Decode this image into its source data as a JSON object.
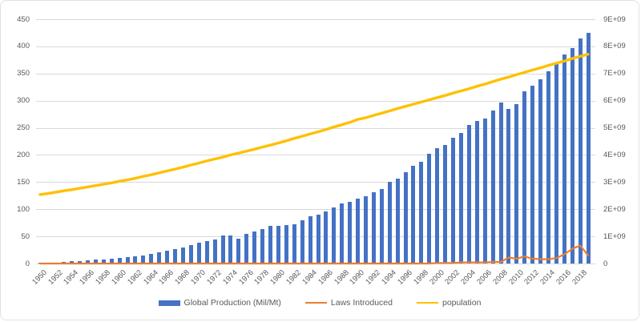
{
  "legend": {
    "items": [
      {
        "label": "Global Production (Mil/Mt)",
        "swatch": "bar",
        "color": "#4472C4"
      },
      {
        "label": "Laws Introduced",
        "swatch": "line",
        "color": "#ED7D31"
      },
      {
        "label": "population",
        "swatch": "line",
        "color": "#FFC000"
      }
    ]
  },
  "colors": {
    "bar_blue": "#4472C4",
    "line_orange": "#ED7D31",
    "line_yellow": "#FFC000",
    "gridline": "#d9d9d9",
    "axis_text": "#595959"
  },
  "chart_data": {
    "type": "combo",
    "title": "",
    "xlabel": "",
    "ylabel": "",
    "grid": true,
    "legend_position": "bottom",
    "categories": [
      1950,
      1951,
      1952,
      1953,
      1954,
      1955,
      1956,
      1957,
      1958,
      1959,
      1960,
      1961,
      1962,
      1963,
      1964,
      1965,
      1966,
      1967,
      1968,
      1969,
      1970,
      1971,
      1972,
      1973,
      1974,
      1975,
      1976,
      1977,
      1978,
      1979,
      1980,
      1981,
      1982,
      1983,
      1984,
      1985,
      1986,
      1987,
      1988,
      1989,
      1990,
      1991,
      1992,
      1993,
      1994,
      1995,
      1996,
      1997,
      1998,
      1999,
      2000,
      2001,
      2002,
      2003,
      2004,
      2005,
      2006,
      2007,
      2008,
      2009,
      2010,
      2011,
      2012,
      2013,
      2014,
      2015,
      2016,
      2017,
      2018,
      2019
    ],
    "series": [
      {
        "name": "Global Production (Mil/Mt)",
        "type": "bar",
        "axis": "left",
        "color": "#4472C4",
        "values": [
          2,
          2,
          2,
          3,
          4,
          5,
          6,
          7,
          8,
          9,
          10,
          12,
          13,
          15,
          18,
          20,
          23,
          26,
          30,
          34,
          38,
          41,
          45,
          51,
          52,
          46,
          54,
          59,
          64,
          70,
          70,
          71,
          73,
          80,
          87,
          90,
          96,
          104,
          110,
          114,
          120,
          124,
          132,
          137,
          151,
          156,
          168,
          180,
          188,
          202,
          213,
          218,
          231,
          241,
          256,
          263,
          267,
          282,
          296,
          285,
          293,
          317,
          327,
          340,
          354,
          367,
          385,
          397,
          415,
          425
        ]
      },
      {
        "name": "Laws Introduced",
        "type": "line",
        "axis": "left",
        "color": "#ED7D31",
        "values": [
          0,
          0,
          0,
          0,
          0,
          0,
          0,
          0,
          0,
          0,
          0,
          0,
          0,
          0,
          0,
          0,
          0,
          0,
          0,
          0,
          0,
          0,
          0,
          0,
          0,
          0,
          0,
          0,
          0,
          0,
          0,
          0,
          0,
          0,
          0,
          0,
          0,
          0,
          0,
          0,
          0,
          0,
          0,
          0,
          0,
          0,
          0,
          0,
          0,
          0,
          1,
          1,
          1,
          2,
          2,
          2,
          2,
          3,
          3,
          11,
          9,
          13,
          9,
          8,
          8,
          10,
          17,
          27,
          33,
          15
        ]
      },
      {
        "name": "population",
        "type": "line",
        "axis": "right",
        "color": "#FFC000",
        "values": [
          2540000000.0,
          2580000000.0,
          2630000000.0,
          2680000000.0,
          2720000000.0,
          2770000000.0,
          2820000000.0,
          2870000000.0,
          2920000000.0,
          2970000000.0,
          3030000000.0,
          3080000000.0,
          3140000000.0,
          3210000000.0,
          3270000000.0,
          3340000000.0,
          3410000000.0,
          3480000000.0,
          3550000000.0,
          3630000000.0,
          3700000000.0,
          3780000000.0,
          3850000000.0,
          3920000000.0,
          4000000000.0,
          4070000000.0,
          4140000000.0,
          4210000000.0,
          4290000000.0,
          4360000000.0,
          4440000000.0,
          4520000000.0,
          4610000000.0,
          4690000000.0,
          4770000000.0,
          4850000000.0,
          4940000000.0,
          5030000000.0,
          5110000000.0,
          5200000000.0,
          5310000000.0,
          5370000000.0,
          5460000000.0,
          5540000000.0,
          5620000000.0,
          5710000000.0,
          5790000000.0,
          5870000000.0,
          5950000000.0,
          6030000000.0,
          6110000000.0,
          6190000000.0,
          6280000000.0,
          6360000000.0,
          6440000000.0,
          6530000000.0,
          6610000000.0,
          6700000000.0,
          6790000000.0,
          6870000000.0,
          6960000000.0,
          7040000000.0,
          7130000000.0,
          7210000000.0,
          7300000000.0,
          7380000000.0,
          7460000000.0,
          7550000000.0,
          7630000000.0,
          7710000000.0
        ]
      }
    ],
    "left_axis": {
      "min": 0,
      "max": 450,
      "step": 50,
      "tick_labels": [
        "0",
        "50",
        "100",
        "150",
        "200",
        "250",
        "300",
        "350",
        "400",
        "450"
      ]
    },
    "right_axis": {
      "min": 0,
      "max": 9000000000.0,
      "step": 1000000000.0,
      "tick_labels": [
        "0",
        "1E+09",
        "2E+09",
        "3E+09",
        "4E+09",
        "5E+09",
        "6E+09",
        "7E+09",
        "8E+09",
        "9E+09"
      ]
    },
    "x_axis": {
      "label_every": 2,
      "rotation": -45
    }
  }
}
